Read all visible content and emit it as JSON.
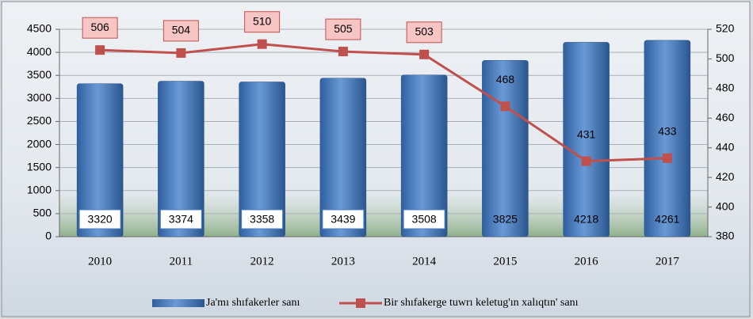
{
  "chart_data": {
    "type": "bar",
    "categories": [
      "2010",
      "2011",
      "2012",
      "2013",
      "2014",
      "2015",
      "2016",
      "2017"
    ],
    "series": [
      {
        "name": "Ja'mı shıfakerler sanı",
        "type": "bar",
        "color": "#4a7ebb",
        "values": [
          3320,
          3374,
          3358,
          3439,
          3508,
          3825,
          4218,
          4261
        ]
      },
      {
        "name": "Bir shıfakerge tuwrı keletug'ın xalıqtın' sanı",
        "type": "line",
        "axis": "y2",
        "color": "#c0504d",
        "values": [
          506,
          504,
          510,
          505,
          503,
          468,
          431,
          433
        ]
      }
    ],
    "ylim": [
      0,
      4500
    ],
    "yticks": [
      0,
      500,
      1000,
      1500,
      2000,
      2500,
      3000,
      3500,
      4000,
      4500
    ],
    "y2lim": [
      380,
      520
    ],
    "y2ticks": [
      380,
      400,
      420,
      440,
      460,
      480,
      500,
      520
    ],
    "grid": true,
    "legend": "bottom"
  }
}
